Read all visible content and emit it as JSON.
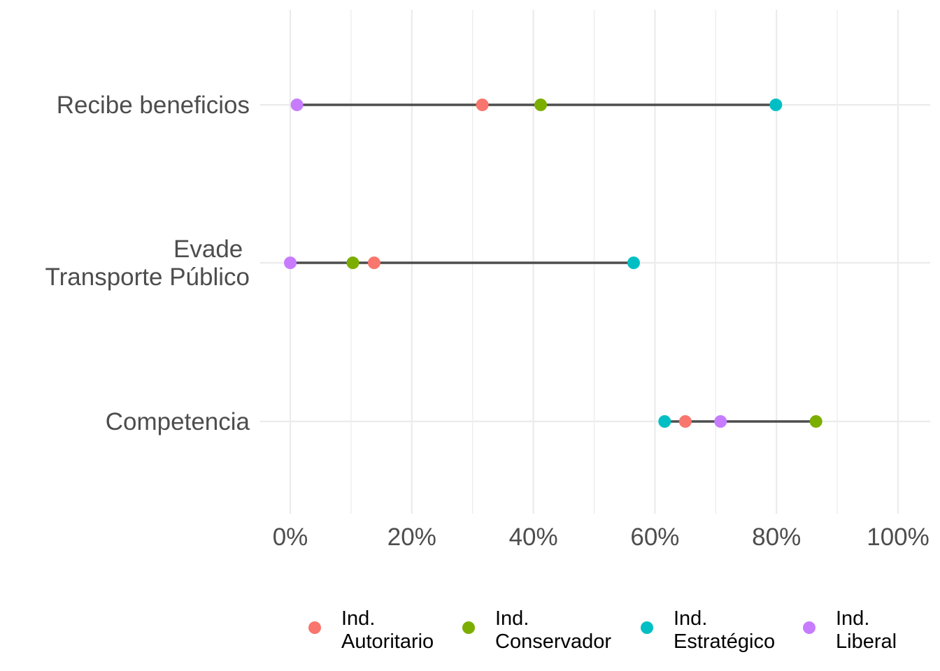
{
  "chart_data": {
    "type": "dumbbell",
    "title": "",
    "xlabel": "",
    "ylabel": "",
    "xlim": [
      0,
      1
    ],
    "x_ticks": [
      {
        "value": 0.0,
        "label": "0%"
      },
      {
        "value": 0.2,
        "label": "20%"
      },
      {
        "value": 0.4,
        "label": "40%"
      },
      {
        "value": 0.6,
        "label": "60%"
      },
      {
        "value": 0.8,
        "label": "80%"
      },
      {
        "value": 1.0,
        "label": "100%"
      }
    ],
    "categories": [
      {
        "key": "recibe",
        "lines": [
          "Recibe beneficios"
        ]
      },
      {
        "key": "evade",
        "lines": [
          "Evade ",
          "Transporte Público"
        ]
      },
      {
        "key": "competencia",
        "lines": [
          "Competencia"
        ]
      }
    ],
    "series": [
      {
        "name_lines": [
          "Ind.",
          "Autoritario"
        ],
        "color": "#F8766D",
        "values": [
          0.316,
          0.138,
          0.65
        ]
      },
      {
        "name_lines": [
          "Ind.",
          "Conservador"
        ],
        "color": "#7CAE00",
        "values": [
          0.412,
          0.103,
          0.865
        ]
      },
      {
        "name_lines": [
          "Ind.",
          "Estratégico"
        ],
        "color": "#00BFC4",
        "values": [
          0.799,
          0.565,
          0.616
        ]
      },
      {
        "name_lines": [
          "Ind.",
          "Liberal"
        ],
        "color": "#C77CFF",
        "values": [
          0.011,
          0.0,
          0.708
        ]
      }
    ],
    "grid": true,
    "legend_position": "bottom"
  }
}
